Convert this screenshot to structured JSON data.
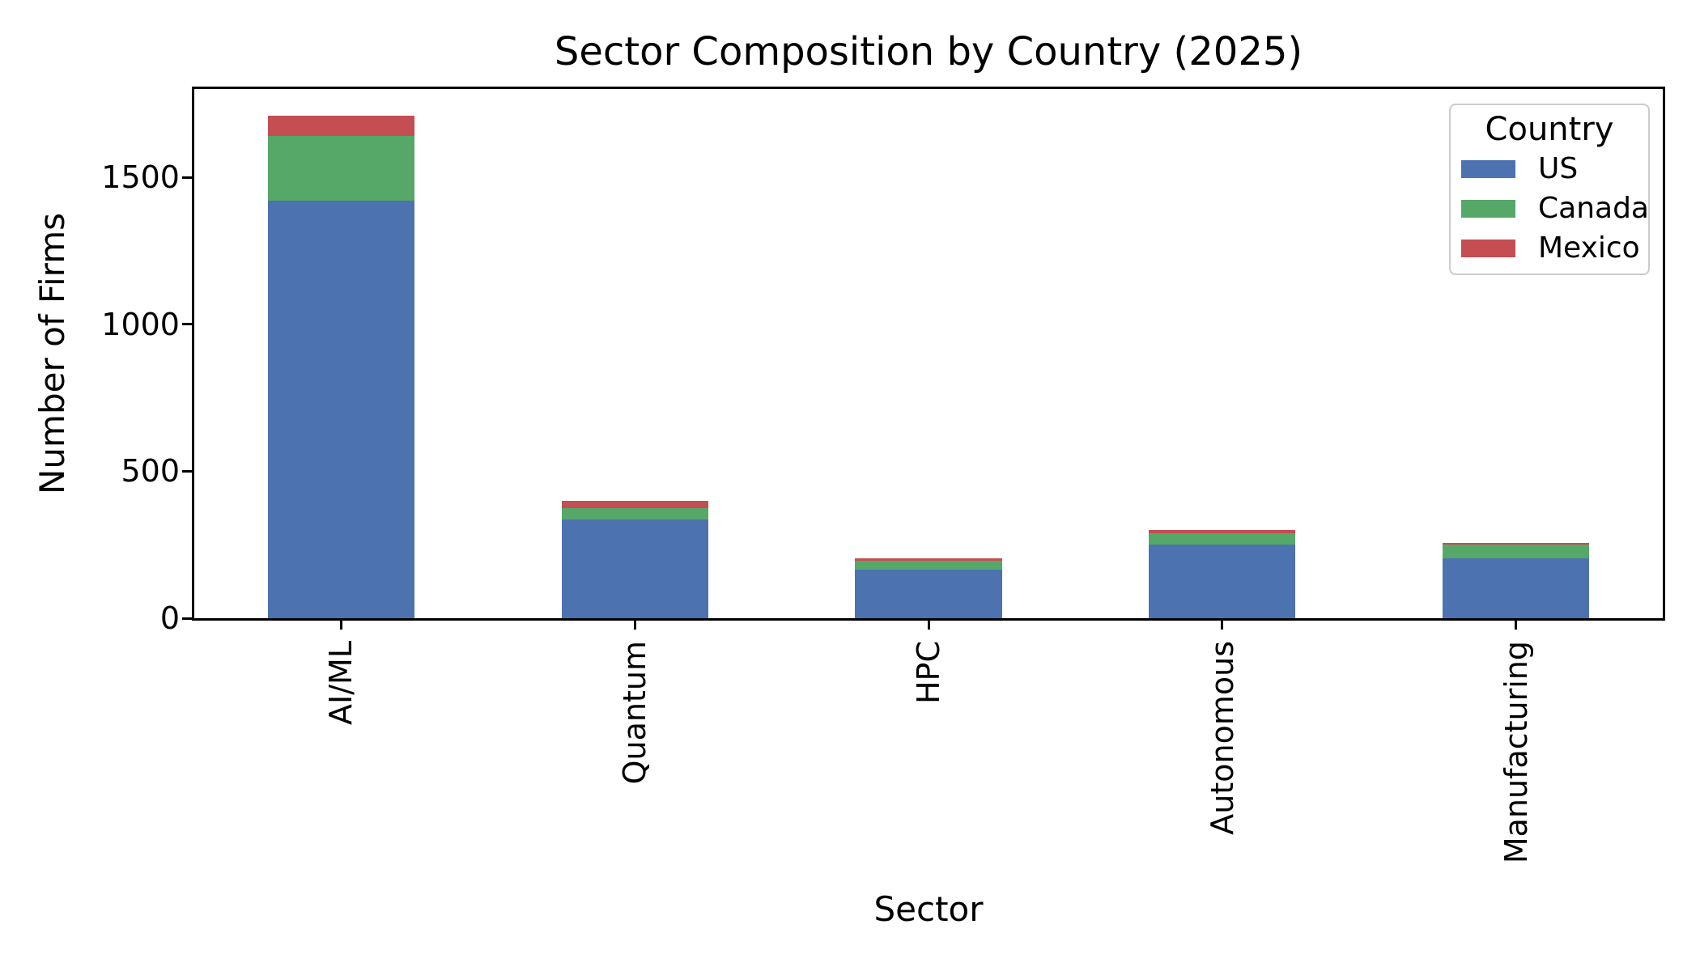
{
  "chart_data": {
    "type": "bar",
    "stacked": true,
    "title": "Sector Composition by Country (2025)",
    "xlabel": "Sector",
    "ylabel": "Number of Firms",
    "categories": [
      "AI/ML",
      "Quantum",
      "HPC",
      "Autonomous",
      "Manufacturing"
    ],
    "series": [
      {
        "name": "US",
        "color": "#4C72B0",
        "values": [
          1420,
          335,
          165,
          250,
          205
        ]
      },
      {
        "name": "Canada",
        "color": "#55A868",
        "values": [
          220,
          40,
          30,
          40,
          45
        ]
      },
      {
        "name": "Mexico",
        "color": "#C44E52",
        "values": [
          70,
          25,
          10,
          10,
          5
        ]
      }
    ],
    "totals": [
      1710,
      400,
      205,
      300,
      255
    ],
    "ylim": [
      0,
      1800
    ],
    "yticks": [
      0,
      500,
      1000,
      1500
    ],
    "bar_width_fraction": 0.5,
    "grid": false,
    "legend": {
      "title": "Country",
      "position": "upper right"
    }
  },
  "colors": {
    "spine": "#000000",
    "text": "#000000",
    "legend_border": "#cccccc",
    "background": "#ffffff"
  }
}
